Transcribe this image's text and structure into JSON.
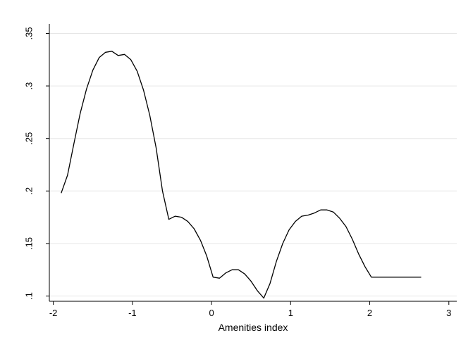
{
  "chart_data": {
    "type": "line",
    "title": "",
    "xlabel": "Amenities index",
    "ylabel": "",
    "xlim": [
      -2.05,
      3.1
    ],
    "ylim": [
      0.095,
      0.355
    ],
    "xticks": [
      -2,
      -1,
      0,
      1,
      2,
      3
    ],
    "xtick_labels": [
      "-2",
      "-1",
      "0",
      "1",
      "2",
      "3"
    ],
    "yticks": [
      0.1,
      0.15,
      0.2,
      0.25,
      0.3,
      0.35
    ],
    "ytick_labels": [
      ".1",
      ".15",
      ".2",
      ".25",
      ".3",
      ".35"
    ],
    "grid": "horizontal",
    "legend": "none",
    "line_color": "#000000",
    "gridline_color": "#e6e6e6",
    "series": [
      {
        "x": [
          -1.9,
          -1.82,
          -1.74,
          -1.66,
          -1.58,
          -1.5,
          -1.42,
          -1.34,
          -1.26,
          -1.18,
          -1.1,
          -1.02,
          -0.94,
          -0.86,
          -0.78,
          -0.7,
          -0.62,
          -0.54,
          -0.46,
          -0.38,
          -0.3,
          -0.22,
          -0.14,
          -0.06,
          0.02,
          0.1,
          0.18,
          0.26,
          0.34,
          0.42,
          0.5,
          0.58,
          0.66,
          0.74,
          0.82,
          0.9,
          0.98,
          1.06,
          1.14,
          1.22,
          1.3,
          1.38,
          1.46,
          1.54,
          1.62,
          1.7,
          1.78,
          1.86,
          1.94,
          2.02,
          2.1,
          2.18,
          2.26,
          2.34,
          2.42,
          2.5,
          2.58,
          2.65
        ],
        "y": [
          0.198,
          0.215,
          0.245,
          0.274,
          0.297,
          0.315,
          0.327,
          0.332,
          0.333,
          0.329,
          0.33,
          0.325,
          0.314,
          0.296,
          0.272,
          0.241,
          0.2,
          0.173,
          0.176,
          0.175,
          0.171,
          0.164,
          0.153,
          0.138,
          0.118,
          0.117,
          0.122,
          0.125,
          0.125,
          0.121,
          0.114,
          0.105,
          0.098,
          0.112,
          0.133,
          0.15,
          0.163,
          0.171,
          0.176,
          0.177,
          0.179,
          0.182,
          0.182,
          0.18,
          0.174,
          0.166,
          0.154,
          0.14,
          0.128,
          0.118,
          0.118,
          0.118,
          0.118,
          0.118,
          0.118,
          0.118,
          0.118,
          0.118
        ]
      }
    ]
  }
}
